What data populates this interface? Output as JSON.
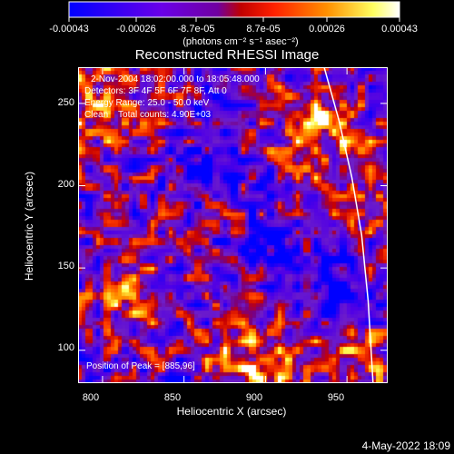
{
  "colorbar": {
    "ticks": [
      "-0.00043",
      "-0.00026",
      "-8.7e-05",
      "8.7e-05",
      "0.00026",
      "0.00043"
    ],
    "unit_label": "(photons cm⁻² s⁻¹ asec⁻²)",
    "colors": [
      "#0000ff",
      "#7b00e0",
      "#ff0000",
      "#ffa000",
      "#ffff80",
      "#ffffff"
    ]
  },
  "chart_data": {
    "type": "heatmap",
    "title": "Reconstructed RHESSI Image",
    "xlabel": "Heliocentric X (arcsec)",
    "ylabel": "Heliocentric Y (arcsec)",
    "xlim": [
      785,
      975
    ],
    "ylim": [
      80,
      272
    ],
    "x_ticks": [
      800,
      850,
      900,
      950
    ],
    "y_ticks": [
      100,
      150,
      200,
      250
    ],
    "value_range": [
      -0.00043,
      0.00043
    ],
    "annotations": {
      "time": "2-Nov-2004 18:02:00.000 to 18:05:48.000",
      "detectors": "Detectors: 3F 4F 5F 6F 7F 8F, Att 0",
      "energy": "Energy Range: 25.0 - 50.0 keV",
      "clean": "Clean    Total counts: 4.90E+03",
      "peak": "Position of Peak = [885,96]"
    },
    "limb_curve": [
      [
        936,
        272
      ],
      [
        945,
        240
      ],
      [
        953,
        205
      ],
      [
        959,
        170
      ],
      [
        963,
        130
      ],
      [
        966,
        80
      ]
    ]
  },
  "footer": {
    "timestamp": "4-May-2022 18:09"
  }
}
